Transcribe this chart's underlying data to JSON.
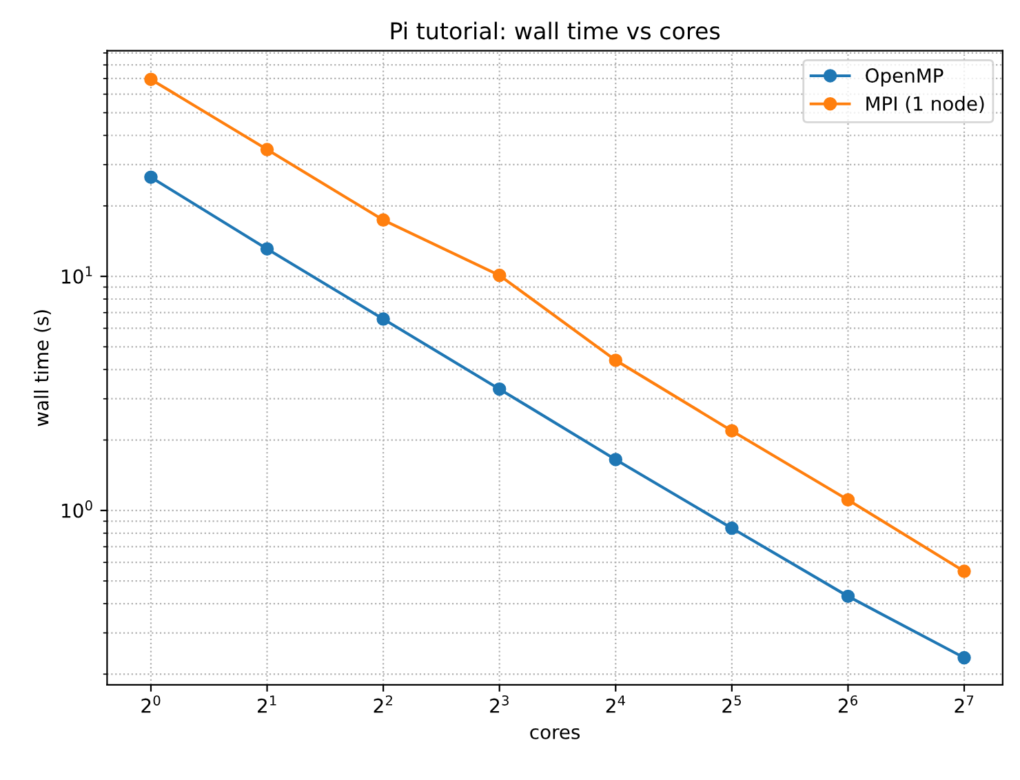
{
  "chart_data": {
    "type": "line",
    "title": "Pi tutorial: wall time vs cores",
    "xlabel": "cores",
    "ylabel": "wall time (s)",
    "x": [
      1,
      2,
      4,
      8,
      16,
      32,
      64,
      128
    ],
    "series": [
      {
        "name": "OpenMP",
        "color": "#1f77b4",
        "values": [
          26.5,
          13.1,
          6.57,
          3.3,
          1.65,
          0.84,
          0.43,
          0.235
        ]
      },
      {
        "name": "MPI (1 node)",
        "color": "#ff7f0e",
        "values": [
          69.4,
          34.8,
          17.4,
          10.1,
          4.38,
          2.19,
          1.11,
          0.55
        ]
      }
    ],
    "log": "xy",
    "xlim": [
      0.77,
      161
    ],
    "ylim": [
      0.18,
      92
    ],
    "xticks": [
      {
        "value": 1,
        "label": "2$^{0}$"
      },
      {
        "value": 2,
        "label": "2$^{1}$"
      },
      {
        "value": 4,
        "label": "2$^{2}$"
      },
      {
        "value": 8,
        "label": "2$^{3}$"
      },
      {
        "value": 16,
        "label": "2$^{4}$"
      },
      {
        "value": 32,
        "label": "2$^{5}$"
      },
      {
        "value": 64,
        "label": "2$^{6}$"
      },
      {
        "value": 128,
        "label": "2$^{7}$"
      }
    ],
    "yticks": [
      {
        "value": 1,
        "label": "10$^{0}$"
      },
      {
        "value": 10,
        "label": "10$^{1}$"
      }
    ],
    "grid": true,
    "legend": "top right",
    "marker": "circle",
    "line_style": "solid"
  }
}
